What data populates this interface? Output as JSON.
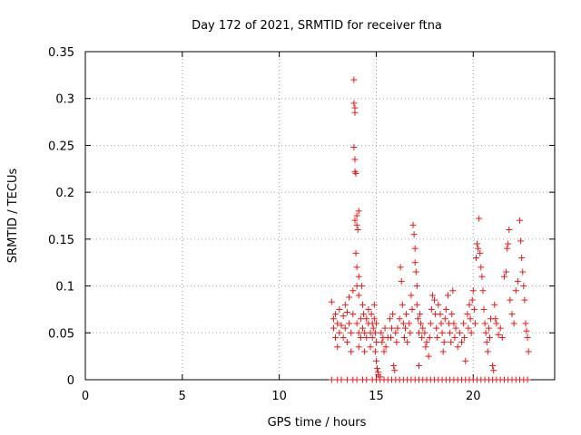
{
  "chart_data": {
    "type": "scatter",
    "title": "Day 172 of 2021, SRMTID for receiver ftna",
    "xlabel": "GPS time / hours",
    "ylabel": "SRMTID / TECUs",
    "xlim": [
      0,
      24.2
    ],
    "ylim": [
      0,
      0.35
    ],
    "x_ticks": [
      0,
      5,
      10,
      15,
      20
    ],
    "x_tick_labels": [
      "0",
      "5",
      "10",
      "15",
      "20"
    ],
    "y_ticks": [
      0,
      0.05,
      0.1,
      0.15,
      0.2,
      0.25,
      0.3,
      0.35
    ],
    "y_tick_labels": [
      "0",
      "0.05",
      "0.1",
      "0.15",
      "0.2",
      "0.25",
      "0.3",
      "0.35"
    ],
    "grid": true,
    "marker": "plus",
    "color": "#e41a1c",
    "series": [
      {
        "points": [
          [
            12.7,
            0.083
          ],
          [
            12.8,
            0.065
          ],
          [
            12.8,
            0.055
          ],
          [
            12.9,
            0.045
          ],
          [
            12.9,
            0.07
          ],
          [
            13.0,
            0.06
          ],
          [
            13.0,
            0.035
          ],
          [
            13.1,
            0.075
          ],
          [
            13.1,
            0.05
          ],
          [
            13.2,
            0.058
          ],
          [
            13.3,
            0.068
          ],
          [
            13.3,
            0.045
          ],
          [
            13.4,
            0.08
          ],
          [
            13.4,
            0.055
          ],
          [
            13.5,
            0.072
          ],
          [
            13.5,
            0.04
          ],
          [
            13.6,
            0.088
          ],
          [
            13.6,
            0.06
          ],
          [
            13.7,
            0.05
          ],
          [
            13.7,
            0.03
          ],
          [
            13.8,
            0.095
          ],
          [
            13.8,
            0.07
          ],
          [
            13.85,
            0.32
          ],
          [
            13.85,
            0.295
          ],
          [
            13.9,
            0.29
          ],
          [
            13.9,
            0.285
          ],
          [
            13.85,
            0.248
          ],
          [
            13.9,
            0.235
          ],
          [
            13.9,
            0.222
          ],
          [
            13.95,
            0.22
          ],
          [
            13.9,
            0.17
          ],
          [
            14.0,
            0.175
          ],
          [
            14.0,
            0.165
          ],
          [
            14.1,
            0.18
          ],
          [
            14.05,
            0.16
          ],
          [
            13.95,
            0.135
          ],
          [
            14.0,
            0.12
          ],
          [
            14.1,
            0.11
          ],
          [
            14.0,
            0.1
          ],
          [
            14.1,
            0.09
          ],
          [
            14.0,
            0.06
          ],
          [
            14.1,
            0.05
          ],
          [
            14.1,
            0.035
          ],
          [
            14.2,
            0.065
          ],
          [
            14.2,
            0.045
          ],
          [
            14.25,
            0.1
          ],
          [
            14.3,
            0.08
          ],
          [
            14.3,
            0.055
          ],
          [
            14.35,
            0.07
          ],
          [
            14.4,
            0.03
          ],
          [
            14.4,
            0.05
          ],
          [
            14.5,
            0.065
          ],
          [
            14.5,
            0.045
          ],
          [
            14.6,
            0.075
          ],
          [
            14.6,
            0.06
          ],
          [
            14.7,
            0.05
          ],
          [
            14.7,
            0.035
          ],
          [
            14.75,
            0.07
          ],
          [
            14.8,
            0.06
          ],
          [
            14.8,
            0.045
          ],
          [
            14.85,
            0.055
          ],
          [
            14.9,
            0.08
          ],
          [
            14.9,
            0.065
          ],
          [
            14.95,
            0.05
          ],
          [
            15.0,
            0.06
          ],
          [
            15.0,
            0.04
          ],
          [
            14.95,
            0.03
          ],
          [
            15.0,
            0.02
          ],
          [
            15.05,
            0.012
          ],
          [
            15.1,
            0.008
          ],
          [
            15.1,
            0.005
          ],
          [
            15.2,
            0.003
          ],
          [
            15.25,
            0.05
          ],
          [
            15.3,
            0.04
          ],
          [
            15.35,
            0.045
          ],
          [
            15.4,
            0.03
          ],
          [
            15.45,
            0.055
          ],
          [
            15.5,
            0.035
          ],
          [
            15.6,
            0.045
          ],
          [
            15.7,
            0.065
          ],
          [
            15.75,
            0.045
          ],
          [
            15.8,
            0.055
          ],
          [
            15.85,
            0.07
          ],
          [
            15.9,
            0.015
          ],
          [
            15.95,
            0.01
          ],
          [
            16.0,
            0.05
          ],
          [
            16.05,
            0.04
          ],
          [
            16.1,
            0.055
          ],
          [
            16.2,
            0.065
          ],
          [
            16.25,
            0.12
          ],
          [
            16.3,
            0.105
          ],
          [
            16.35,
            0.08
          ],
          [
            16.4,
            0.06
          ],
          [
            16.45,
            0.045
          ],
          [
            16.5,
            0.055
          ],
          [
            16.55,
            0.07
          ],
          [
            16.6,
            0.04
          ],
          [
            16.7,
            0.06
          ],
          [
            16.75,
            0.05
          ],
          [
            16.8,
            0.09
          ],
          [
            16.85,
            0.075
          ],
          [
            16.9,
            0.165
          ],
          [
            16.95,
            0.155
          ],
          [
            17.0,
            0.14
          ],
          [
            17.0,
            0.125
          ],
          [
            17.05,
            0.115
          ],
          [
            17.1,
            0.1
          ],
          [
            17.1,
            0.08
          ],
          [
            17.15,
            0.065
          ],
          [
            17.2,
            0.05
          ],
          [
            17.2,
            0.015
          ],
          [
            17.25,
            0.07
          ],
          [
            17.3,
            0.06
          ],
          [
            17.35,
            0.045
          ],
          [
            17.4,
            0.055
          ],
          [
            17.5,
            0.05
          ],
          [
            17.55,
            0.035
          ],
          [
            17.6,
            0.04
          ],
          [
            17.7,
            0.025
          ],
          [
            17.75,
            0.045
          ],
          [
            17.8,
            0.06
          ],
          [
            17.85,
            0.075
          ],
          [
            17.9,
            0.09
          ],
          [
            18.0,
            0.085
          ],
          [
            18.05,
            0.07
          ],
          [
            18.1,
            0.055
          ],
          [
            18.15,
            0.045
          ],
          [
            18.2,
            0.08
          ],
          [
            18.3,
            0.07
          ],
          [
            18.35,
            0.06
          ],
          [
            18.4,
            0.05
          ],
          [
            18.45,
            0.03
          ],
          [
            18.5,
            0.04
          ],
          [
            18.55,
            0.065
          ],
          [
            18.6,
            0.075
          ],
          [
            18.7,
            0.09
          ],
          [
            18.75,
            0.06
          ],
          [
            18.8,
            0.05
          ],
          [
            18.85,
            0.04
          ],
          [
            18.9,
            0.07
          ],
          [
            18.95,
            0.095
          ],
          [
            19.0,
            0.06
          ],
          [
            19.05,
            0.045
          ],
          [
            19.1,
            0.055
          ],
          [
            19.2,
            0.035
          ],
          [
            19.3,
            0.05
          ],
          [
            19.4,
            0.04
          ],
          [
            19.5,
            0.06
          ],
          [
            19.55,
            0.045
          ],
          [
            19.6,
            0.02
          ],
          [
            19.7,
            0.07
          ],
          [
            19.75,
            0.055
          ],
          [
            19.8,
            0.08
          ],
          [
            19.85,
            0.065
          ],
          [
            19.9,
            0.05
          ],
          [
            19.95,
            0.085
          ],
          [
            20.0,
            0.095
          ],
          [
            20.05,
            0.075
          ],
          [
            20.1,
            0.06
          ],
          [
            20.15,
            0.13
          ],
          [
            20.2,
            0.145
          ],
          [
            20.25,
            0.14
          ],
          [
            20.3,
            0.172
          ],
          [
            20.35,
            0.135
          ],
          [
            20.4,
            0.12
          ],
          [
            20.45,
            0.11
          ],
          [
            20.5,
            0.095
          ],
          [
            20.55,
            0.075
          ],
          [
            20.6,
            0.06
          ],
          [
            20.65,
            0.05
          ],
          [
            20.7,
            0.04
          ],
          [
            20.75,
            0.03
          ],
          [
            20.8,
            0.055
          ],
          [
            20.85,
            0.045
          ],
          [
            20.9,
            0.065
          ],
          [
            21.0,
            0.015
          ],
          [
            21.05,
            0.01
          ],
          [
            21.1,
            0.08
          ],
          [
            21.15,
            0.065
          ],
          [
            21.2,
            0.06
          ],
          [
            21.3,
            0.048
          ],
          [
            21.4,
            0.055
          ],
          [
            21.5,
            0.045
          ],
          [
            21.6,
            0.11
          ],
          [
            21.7,
            0.115
          ],
          [
            21.75,
            0.14
          ],
          [
            21.8,
            0.145
          ],
          [
            21.85,
            0.16
          ],
          [
            21.9,
            0.085
          ],
          [
            22.0,
            0.07
          ],
          [
            22.1,
            0.06
          ],
          [
            22.2,
            0.095
          ],
          [
            22.3,
            0.105
          ],
          [
            22.4,
            0.17
          ],
          [
            22.45,
            0.148
          ],
          [
            22.5,
            0.13
          ],
          [
            22.55,
            0.115
          ],
          [
            22.6,
            0.1
          ],
          [
            22.65,
            0.085
          ],
          [
            22.7,
            0.06
          ],
          [
            22.75,
            0.052
          ],
          [
            22.8,
            0.045
          ],
          [
            22.85,
            0.03
          ],
          [
            12.7,
            0
          ],
          [
            13.0,
            0
          ],
          [
            13.2,
            0
          ],
          [
            13.5,
            0
          ],
          [
            13.8,
            0
          ],
          [
            14.0,
            0
          ],
          [
            14.3,
            0
          ],
          [
            14.5,
            0
          ],
          [
            14.8,
            0
          ],
          [
            15.0,
            0
          ],
          [
            15.2,
            0
          ],
          [
            15.4,
            0
          ],
          [
            15.6,
            0
          ],
          [
            15.8,
            0
          ],
          [
            16.0,
            0
          ],
          [
            16.2,
            0
          ],
          [
            16.4,
            0
          ],
          [
            16.6,
            0
          ],
          [
            16.8,
            0
          ],
          [
            17.0,
            0
          ],
          [
            17.2,
            0
          ],
          [
            17.4,
            0
          ],
          [
            17.6,
            0
          ],
          [
            17.8,
            0
          ],
          [
            18.0,
            0
          ],
          [
            18.2,
            0
          ],
          [
            18.4,
            0
          ],
          [
            18.6,
            0
          ],
          [
            18.8,
            0
          ],
          [
            19.0,
            0
          ],
          [
            19.2,
            0
          ],
          [
            19.4,
            0
          ],
          [
            19.6,
            0
          ],
          [
            19.8,
            0
          ],
          [
            20.0,
            0
          ],
          [
            20.2,
            0
          ],
          [
            20.4,
            0
          ],
          [
            20.6,
            0
          ],
          [
            20.8,
            0
          ],
          [
            21.0,
            0
          ],
          [
            21.2,
            0
          ],
          [
            21.4,
            0
          ],
          [
            21.6,
            0
          ],
          [
            21.8,
            0
          ],
          [
            22.0,
            0
          ],
          [
            22.2,
            0
          ],
          [
            22.4,
            0
          ],
          [
            22.6,
            0
          ],
          [
            22.8,
            0
          ]
        ]
      }
    ]
  }
}
